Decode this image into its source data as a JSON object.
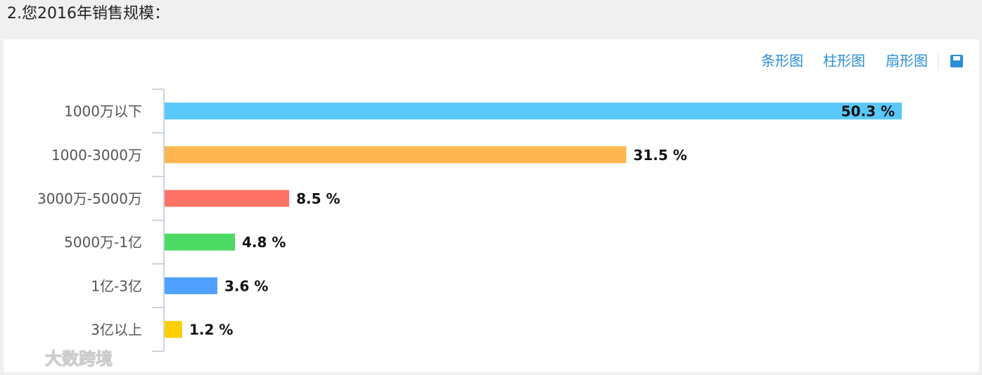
{
  "page_title": "2.您2016年销售规模：",
  "toolbar": [
    "条形图",
    "柱形图",
    "扇形图"
  ],
  "watermark": "大数跨境",
  "chart_data": {
    "type": "bar",
    "orientation": "horizontal",
    "categories": [
      "1000万以下",
      "1000-3000万",
      "3000万-5000万",
      "5000万-1亿",
      "1亿-3亿",
      "3亿以上"
    ],
    "series": [
      {
        "values": [
          50.3,
          31.5,
          8.5,
          4.8,
          3.6,
          1.2
        ],
        "value_labels": [
          "50.3 %",
          "31.5 %",
          "8.5 %",
          "4.8 %",
          "3.6 %",
          "1.2 %"
        ],
        "colors": [
          "#5ac8fa",
          "#ffb550",
          "#ff7366",
          "#4cd964",
          "#50a0ff",
          "#ffd000"
        ]
      }
    ]
  }
}
